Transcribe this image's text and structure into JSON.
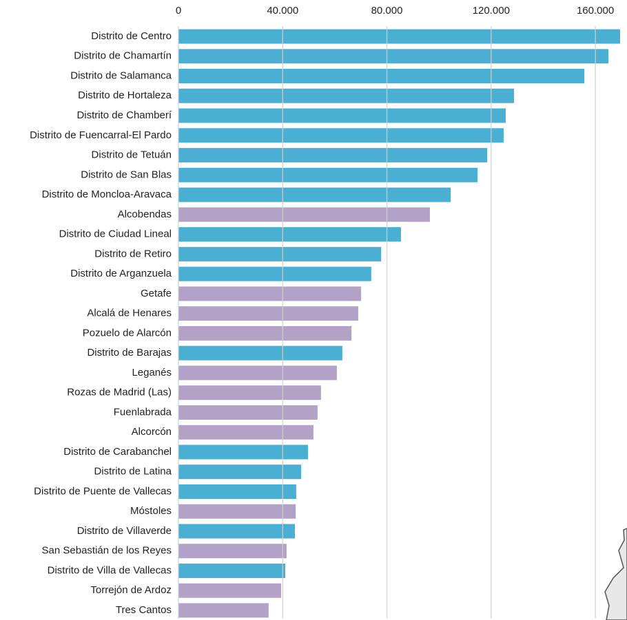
{
  "chart_data": {
    "type": "hbar",
    "categories": [
      "Distrito de Centro",
      "Distrito de Chamartín",
      "Distrito de Salamanca",
      "Distrito de Hortaleza",
      "Distrito de Chamberí",
      "Distrito de Fuencarral-El Pardo",
      "Distrito de Tetuán",
      "Distrito de San Blas",
      "Distrito de Moncloa-Aravaca",
      "Alcobendas",
      "Distrito de Ciudad Lineal",
      "Distrito de Retiro",
      "Distrito de Arganzuela",
      "Getafe",
      "Alcalá  de Henares",
      "Pozuelo de Alarcón",
      "Distrito de Barajas",
      "Leganés",
      "Rozas de Madrid (Las)",
      "Fuenlabrada",
      "Alcorcón",
      "Distrito de Carabanchel",
      "Distrito de Latina",
      "Distrito de Puente de Vallecas",
      "Móstoles",
      "Distrito de Villaverde",
      "San Sebastián de los Reyes",
      "Distrito de Villa de Vallecas",
      "Torrejón de Ardoz",
      "Tres Cantos"
    ],
    "values": [
      169500,
      165000,
      155800,
      128800,
      125600,
      124800,
      118500,
      114800,
      104500,
      96500,
      85400,
      77800,
      74000,
      70100,
      69000,
      66400,
      62900,
      60800,
      54700,
      53400,
      51800,
      49700,
      47100,
      45200,
      45000,
      44700,
      41500,
      41000,
      39400,
      34600
    ],
    "colors": [
      "#4bafd4",
      "#4bafd4",
      "#4bafd4",
      "#4bafd4",
      "#4bafd4",
      "#4bafd4",
      "#4bafd4",
      "#4bafd4",
      "#4bafd4",
      "#b3a2c8",
      "#4bafd4",
      "#4bafd4",
      "#4bafd4",
      "#b3a2c8",
      "#b3a2c8",
      "#b3a2c8",
      "#4bafd4",
      "#b3a2c8",
      "#b3a2c8",
      "#b3a2c8",
      "#b3a2c8",
      "#4bafd4",
      "#4bafd4",
      "#4bafd4",
      "#b3a2c8",
      "#4bafd4",
      "#b3a2c8",
      "#4bafd4",
      "#b3a2c8",
      "#b3a2c8"
    ],
    "xlim": [
      0,
      169500
    ],
    "xticks": [
      0,
      {
        "value": 40000,
        "label": "40.000"
      },
      {
        "value": 80000,
        "label": "80.000"
      },
      {
        "value": 120000,
        "label": "120.000"
      },
      {
        "value": 160000,
        "label": "160.000"
      }
    ],
    "grid": true
  }
}
